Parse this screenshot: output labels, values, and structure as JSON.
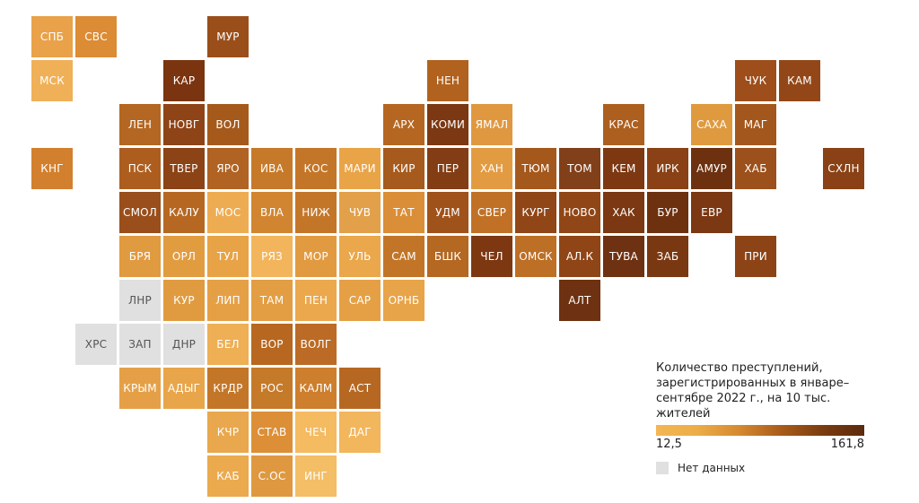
{
  "chart_data": {
    "type": "heatmap",
    "legend": {
      "title": "Количество преступлений, зарегистрированных в январе–сентябре 2022 г., на 10 тыс. жителей",
      "min_label": "12,5",
      "max_label": "161,8",
      "min_value": 12.5,
      "max_value": 161.8,
      "nodata_label": "Нет данных",
      "nodata_color": "#e0e0e0",
      "gradient": [
        "#f4b654",
        "#ecac47",
        "#d58931",
        "#a95c18",
        "#7a3c10",
        "#5c2a0d"
      ]
    },
    "cells": [
      {
        "label": "СПБ",
        "row": 0,
        "col": 0,
        "color": "#e9a24a"
      },
      {
        "label": "СВС",
        "row": 0,
        "col": 1,
        "color": "#db8c35"
      },
      {
        "label": "МУР",
        "row": 0,
        "col": 4,
        "color": "#9a4f1b"
      },
      {
        "label": "МСК",
        "row": 1,
        "col": 0,
        "color": "#f0b058"
      },
      {
        "label": "КАР",
        "row": 1,
        "col": 3,
        "color": "#7a3410"
      },
      {
        "label": "НЕН",
        "row": 1,
        "col": 9,
        "color": "#b1621f"
      },
      {
        "label": "ЧУК",
        "row": 1,
        "col": 16,
        "color": "#9d4e1a"
      },
      {
        "label": "КАМ",
        "row": 1,
        "col": 17,
        "color": "#934718"
      },
      {
        "label": "ЛЕН",
        "row": 2,
        "col": 2,
        "color": "#b46722"
      },
      {
        "label": "НОВГ",
        "row": 2,
        "col": 3,
        "color": "#8e4416"
      },
      {
        "label": "ВОЛ",
        "row": 2,
        "col": 4,
        "color": "#a55a1c"
      },
      {
        "label": "АРХ",
        "row": 2,
        "col": 8,
        "color": "#b56722"
      },
      {
        "label": "КОМИ",
        "row": 2,
        "col": 9,
        "color": "#7b3812"
      },
      {
        "label": "ЯМАЛ",
        "row": 2,
        "col": 10,
        "color": "#e09840"
      },
      {
        "label": "КРАС",
        "row": 2,
        "col": 13,
        "color": "#ad5f1f"
      },
      {
        "label": "САХА",
        "row": 2,
        "col": 15,
        "color": "#df9a3f"
      },
      {
        "label": "МАГ",
        "row": 2,
        "col": 16,
        "color": "#a4571c"
      },
      {
        "label": "КНГ",
        "row": 3,
        "col": 0,
        "color": "#d2802e"
      },
      {
        "label": "ПСК",
        "row": 3,
        "col": 2,
        "color": "#ad5e1f"
      },
      {
        "label": "ТВЕР",
        "row": 3,
        "col": 3,
        "color": "#8c4316"
      },
      {
        "label": "ЯРО",
        "row": 3,
        "col": 4,
        "color": "#b06323"
      },
      {
        "label": "ИВА",
        "row": 3,
        "col": 5,
        "color": "#c7792a"
      },
      {
        "label": "КОС",
        "row": 3,
        "col": 6,
        "color": "#c47628"
      },
      {
        "label": "МАРИ",
        "row": 3,
        "col": 7,
        "color": "#e9a448"
      },
      {
        "label": "КИР",
        "row": 3,
        "col": 8,
        "color": "#a65a1d"
      },
      {
        "label": "ПЕР",
        "row": 3,
        "col": 9,
        "color": "#833d14"
      },
      {
        "label": "ХАН",
        "row": 3,
        "col": 10,
        "color": "#e39b42"
      },
      {
        "label": "ТЮМ",
        "row": 3,
        "col": 11,
        "color": "#a4581c"
      },
      {
        "label": "ТОМ",
        "row": 3,
        "col": 12,
        "color": "#81401a"
      },
      {
        "label": "КЕМ",
        "row": 3,
        "col": 13,
        "color": "#7d3812"
      },
      {
        "label": "ИРК",
        "row": 3,
        "col": 14,
        "color": "#8a4115"
      },
      {
        "label": "АМУР",
        "row": 3,
        "col": 15,
        "color": "#6d3110"
      },
      {
        "label": "ХАБ",
        "row": 3,
        "col": 16,
        "color": "#9c501b"
      },
      {
        "label": "СХЛН",
        "row": 3,
        "col": 18,
        "color": "#8a4115"
      },
      {
        "label": "СМОЛ",
        "row": 4,
        "col": 2,
        "color": "#9a4e1b"
      },
      {
        "label": "КАЛУ",
        "row": 4,
        "col": 3,
        "color": "#b66822"
      },
      {
        "label": "МОС",
        "row": 4,
        "col": 4,
        "color": "#eeac52"
      },
      {
        "label": "ВЛА",
        "row": 4,
        "col": 5,
        "color": "#d28531"
      },
      {
        "label": "НИЖ",
        "row": 4,
        "col": 6,
        "color": "#c47628"
      },
      {
        "label": "ЧУВ",
        "row": 4,
        "col": 7,
        "color": "#e3a04a"
      },
      {
        "label": "ТАТ",
        "row": 4,
        "col": 8,
        "color": "#da8e37"
      },
      {
        "label": "УДМ",
        "row": 4,
        "col": 9,
        "color": "#a0521b"
      },
      {
        "label": "СВЕР",
        "row": 4,
        "col": 10,
        "color": "#c17126"
      },
      {
        "label": "КУРГ",
        "row": 4,
        "col": 11,
        "color": "#904616"
      },
      {
        "label": "НОВО",
        "row": 4,
        "col": 12,
        "color": "#904616"
      },
      {
        "label": "ХАК",
        "row": 4,
        "col": 13,
        "color": "#7b3812"
      },
      {
        "label": "БУР",
        "row": 4,
        "col": 14,
        "color": "#6d3110"
      },
      {
        "label": "ЕВР",
        "row": 4,
        "col": 15,
        "color": "#7b3812"
      },
      {
        "label": "БРЯ",
        "row": 5,
        "col": 2,
        "color": "#e09a3f"
      },
      {
        "label": "ОРЛ",
        "row": 5,
        "col": 3,
        "color": "#e29c40"
      },
      {
        "label": "ТУЛ",
        "row": 5,
        "col": 4,
        "color": "#e8a346"
      },
      {
        "label": "РЯЗ",
        "row": 5,
        "col": 5,
        "color": "#f2b55c"
      },
      {
        "label": "МОР",
        "row": 5,
        "col": 6,
        "color": "#e29a40"
      },
      {
        "label": "УЛЬ",
        "row": 5,
        "col": 7,
        "color": "#eaa74b"
      },
      {
        "label": "САМ",
        "row": 5,
        "col": 8,
        "color": "#c27527"
      },
      {
        "label": "БШК",
        "row": 5,
        "col": 9,
        "color": "#b56822"
      },
      {
        "label": "ЧЕЛ",
        "row": 5,
        "col": 10,
        "color": "#7d3812"
      },
      {
        "label": "ОМСК",
        "row": 5,
        "col": 11,
        "color": "#bd6f25"
      },
      {
        "label": "АЛ.К",
        "row": 5,
        "col": 12,
        "color": "#8f4516"
      },
      {
        "label": "ТУВА",
        "row": 5,
        "col": 13,
        "color": "#6e3111"
      },
      {
        "label": "ЗАБ",
        "row": 5,
        "col": 14,
        "color": "#7a3812"
      },
      {
        "label": "ПРИ",
        "row": 5,
        "col": 16,
        "color": "#8c4316"
      },
      {
        "label": "ЛНР",
        "row": 6,
        "col": 2,
        "color": "#e0e0e0",
        "nodata": true
      },
      {
        "label": "КУР",
        "row": 6,
        "col": 3,
        "color": "#e09b40"
      },
      {
        "label": "ЛИП",
        "row": 6,
        "col": 4,
        "color": "#e5a046"
      },
      {
        "label": "ТАМ",
        "row": 6,
        "col": 5,
        "color": "#e39d43"
      },
      {
        "label": "ПЕН",
        "row": 6,
        "col": 6,
        "color": "#eba84d"
      },
      {
        "label": "САР",
        "row": 6,
        "col": 7,
        "color": "#e5a046"
      },
      {
        "label": "ОРНБ",
        "row": 6,
        "col": 8,
        "color": "#e8a449"
      },
      {
        "label": "АЛТ",
        "row": 6,
        "col": 12,
        "color": "#6e3111"
      },
      {
        "label": "ХРС",
        "row": 7,
        "col": 1,
        "color": "#e0e0e0",
        "nodata": true
      },
      {
        "label": "ЗАП",
        "row": 7,
        "col": 2,
        "color": "#e0e0e0",
        "nodata": true
      },
      {
        "label": "ДНР",
        "row": 7,
        "col": 3,
        "color": "#e0e0e0",
        "nodata": true
      },
      {
        "label": "БЕЛ",
        "row": 7,
        "col": 4,
        "color": "#eeaf55"
      },
      {
        "label": "ВОР",
        "row": 7,
        "col": 5,
        "color": "#b7671f"
      },
      {
        "label": "ВОЛГ",
        "row": 7,
        "col": 6,
        "color": "#bb6b25"
      },
      {
        "label": "КРЫМ",
        "row": 8,
        "col": 2,
        "color": "#e5a047"
      },
      {
        "label": "АДЫГ",
        "row": 8,
        "col": 3,
        "color": "#e8a54a"
      },
      {
        "label": "КРДР",
        "row": 8,
        "col": 4,
        "color": "#c47628"
      },
      {
        "label": "РОС",
        "row": 8,
        "col": 5,
        "color": "#c57a2a"
      },
      {
        "label": "КАЛМ",
        "row": 8,
        "col": 6,
        "color": "#cd7f2d"
      },
      {
        "label": "АСТ",
        "row": 8,
        "col": 7,
        "color": "#b66822"
      },
      {
        "label": "КЧР",
        "row": 9,
        "col": 4,
        "color": "#e9a84d"
      },
      {
        "label": "СТАВ",
        "row": 9,
        "col": 5,
        "color": "#dc8f37"
      },
      {
        "label": "ЧЕЧ",
        "row": 9,
        "col": 6,
        "color": "#f4bb61"
      },
      {
        "label": "ДАГ",
        "row": 9,
        "col": 7,
        "color": "#f2b65c"
      },
      {
        "label": "КАБ",
        "row": 10,
        "col": 4,
        "color": "#ebaa4e"
      },
      {
        "label": "С.ОС",
        "row": 10,
        "col": 5,
        "color": "#df9840"
      },
      {
        "label": "ИНГ",
        "row": 10,
        "col": 6,
        "color": "#f4be66"
      }
    ]
  }
}
